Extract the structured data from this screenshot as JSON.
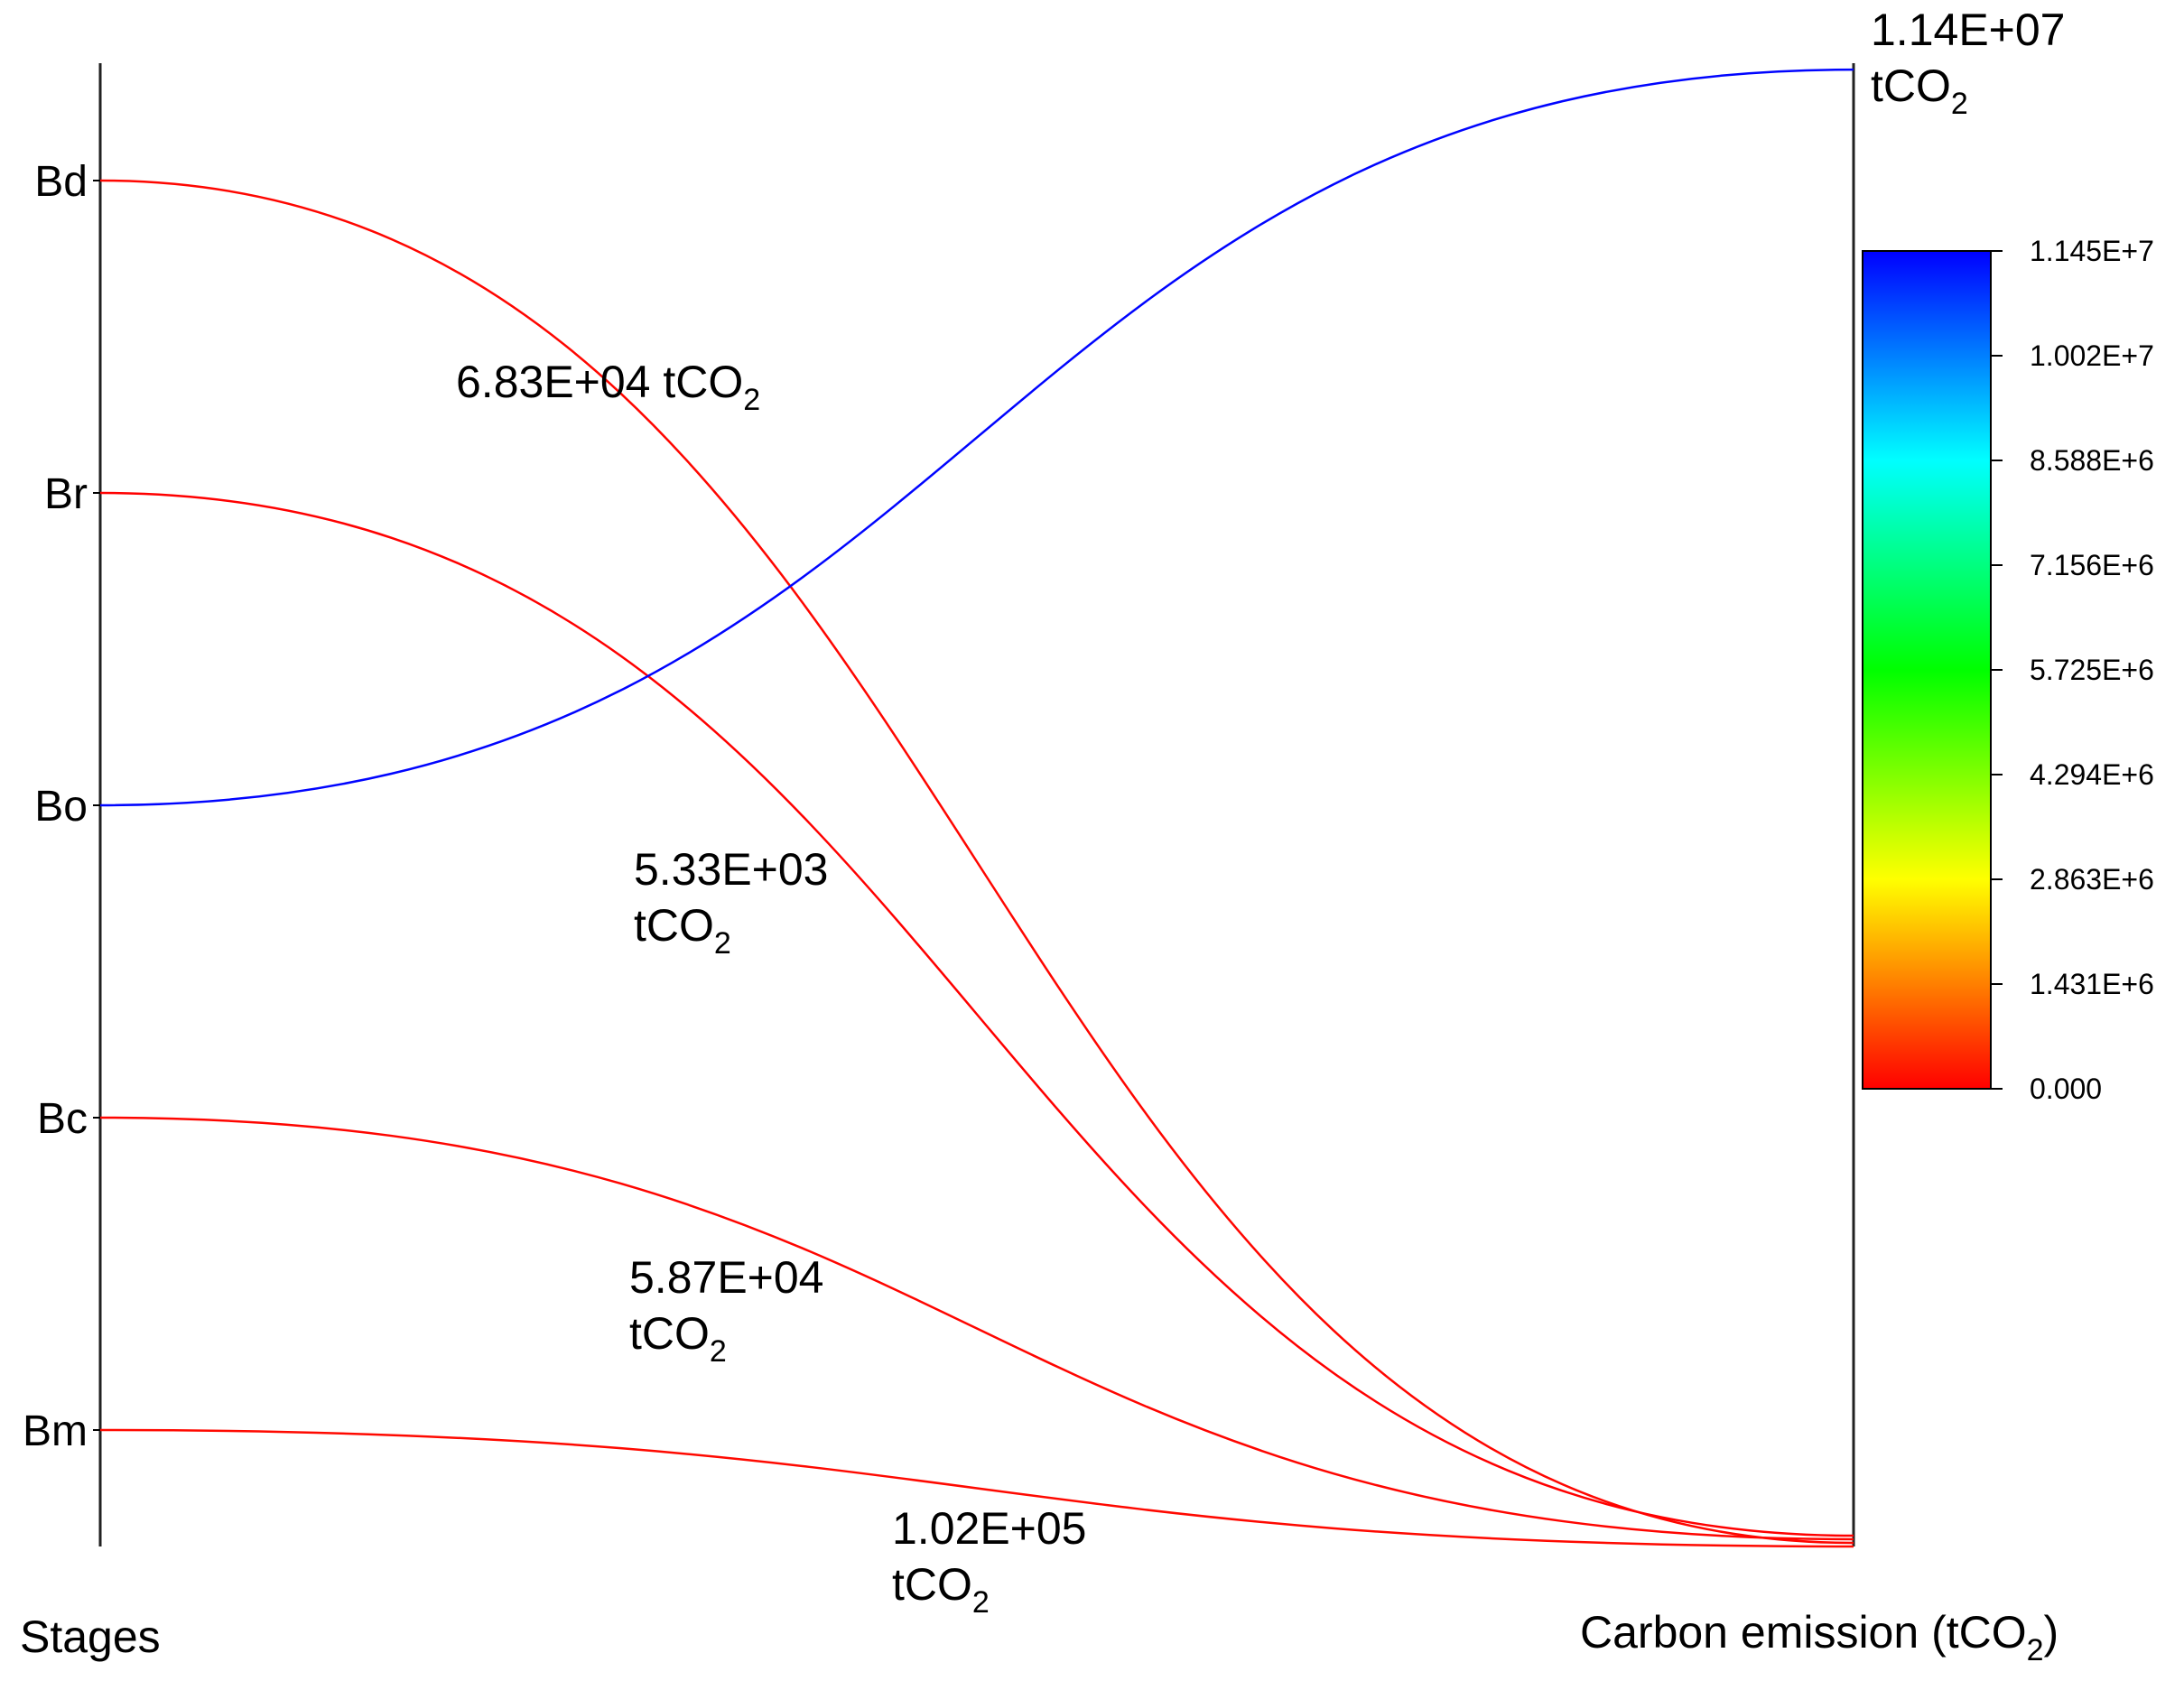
{
  "chart_data": {
    "type": "parallel-coordinates",
    "left_axis": {
      "title": "Stages",
      "categories": [
        "Bd",
        "Br",
        "Bo",
        "Bc",
        "Bm"
      ]
    },
    "right_axis": {
      "title": "Carbon emission (tCO",
      "title_sub": "2",
      "title_end": ")"
    },
    "series": [
      {
        "stage": "Bd",
        "value": 68300,
        "label_main": "6.83E+04 tCO",
        "label_unit": "",
        "label_sub": "2"
      },
      {
        "stage": "Br",
        "value": 5330,
        "label_main": "5.33E+03",
        "label_unit": "tCO",
        "label_sub": "2"
      },
      {
        "stage": "Bo",
        "value": 11400000,
        "label_main": "1.14E+07",
        "label_unit": "tCO",
        "label_sub": "2"
      },
      {
        "stage": "Bc",
        "value": 58700,
        "label_main": "5.87E+04",
        "label_unit": "tCO",
        "label_sub": "2"
      },
      {
        "stage": "Bm",
        "value": 102000,
        "label_main": "1.02E+05",
        "label_unit": "tCO",
        "label_sub": "2"
      }
    ],
    "colorbar": {
      "range": [
        0,
        11450000
      ],
      "tick_labels": [
        "0.000",
        "1.431E+6",
        "2.863E+6",
        "4.294E+6",
        "5.725E+6",
        "7.156E+6",
        "8.588E+6",
        "1.002E+7",
        "1.145E+7"
      ],
      "colors": [
        "#ff0000",
        "#ffff00",
        "#00ff00",
        "#00ffff",
        "#0000ff"
      ]
    }
  }
}
